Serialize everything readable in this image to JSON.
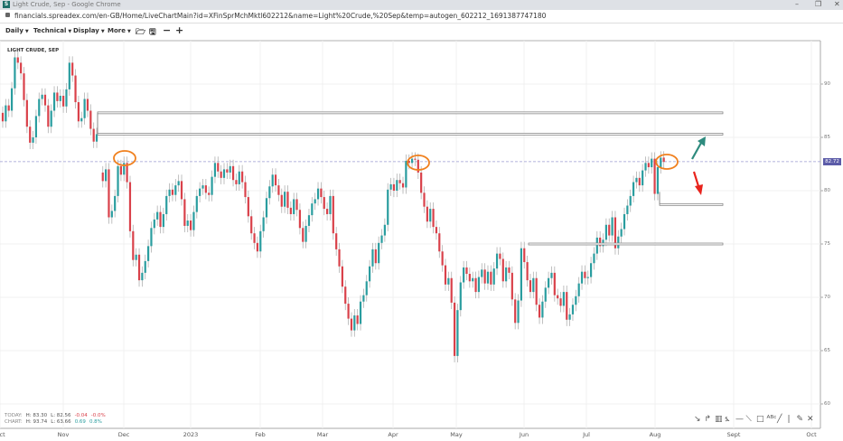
{
  "browser": {
    "title": "Light Crude, Sep - Google Chrome",
    "favicon_letter": "S",
    "url": "financials.spreadex.com/en-GB/Home/LiveChartMain?id=XFinSprMchMktl602212&name=Light%20Crude,%20Sep&temp=autogen_602212_1691387747180"
  },
  "toolbar": {
    "items": [
      {
        "label": "Daily",
        "dropdown": true
      },
      {
        "label": "Technical",
        "dropdown": true
      },
      {
        "label": "Display",
        "dropdown": true
      },
      {
        "label": "More",
        "dropdown": true
      }
    ],
    "icons": [
      "folder-open-icon",
      "save-icon",
      "zoom-out-icon",
      "zoom-in-icon"
    ]
  },
  "chart_title": "LIGHT CRUDE, SEP",
  "stats": {
    "today": {
      "label": "TODAY:",
      "high": "H: 83.30",
      "low": "L: 82.56",
      "change": "-0.04",
      "change_pct": "-0.0%"
    },
    "chart": {
      "label": "CHART:",
      "high": "H: 93.74",
      "low": "L: 63.66",
      "change": "0.69",
      "change_pct": "0.8%"
    }
  },
  "current_price": "82.72",
  "colors": {
    "up": "#2a9d9f",
    "down": "#d9414a",
    "wick": "#b0b0b0",
    "price_tag": "#5b5ba8",
    "highlight": "#f0801e",
    "arrow_up": "#2e8b7e",
    "arrow_down": "#e8231c"
  },
  "chart_data": {
    "type": "candlestick",
    "x_ticks": [
      "Oct",
      "Nov",
      "Dec",
      "2023",
      "Feb",
      "Mar",
      "Apr",
      "May",
      "Jun",
      "Jul",
      "Aug",
      "Sept",
      "Oct"
    ],
    "y_ticks": [
      60,
      65,
      70,
      75,
      80,
      85,
      90
    ],
    "ylim": [
      59.5,
      94.5
    ],
    "grid": true,
    "closes": [
      86.5,
      88,
      87.5,
      89.6,
      92.5,
      92,
      91,
      88.5,
      86,
      84.5,
      85,
      87,
      88.6,
      89,
      88,
      86,
      87.5,
      89.2,
      88.4,
      88.9,
      87.9,
      89.5,
      92,
      90.8,
      88.3,
      86.5,
      86.8,
      88.6,
      87.5,
      85.8,
      84.6,
      85.3,
      null,
      80.9,
      82,
      77.5,
      78.1,
      79.5,
      82.3,
      81.5,
      82.6,
      80.8,
      76.2,
      73.5,
      74,
      71.6,
      72.3,
      73.4,
      74.8,
      76.5,
      77.3,
      78,
      76.6,
      77.8,
      79.5,
      80.1,
      79.6,
      80.5,
      80.9,
      79.2,
      76.7,
      77.2,
      76.3,
      78,
      79.5,
      80.2,
      80.5,
      79.8,
      79.6,
      81.3,
      82.6,
      81.8,
      81.2,
      82,
      81.7,
      82.3,
      81,
      80.6,
      81.8,
      80.8,
      79.4,
      77.6,
      76,
      75.1,
      74.3,
      76.2,
      77.5,
      79.3,
      80.4,
      81.5,
      80.5,
      79.6,
      78.5,
      79.9,
      78.4,
      77.8,
      79.2,
      78.2,
      76.5,
      75.2,
      76.7,
      77.7,
      78.8,
      79.2,
      80.2,
      79.4,
      78.3,
      77.8,
      79.5,
      76,
      74.5,
      72.9,
      71,
      69.4,
      68,
      66.9,
      68.3,
      67.5,
      69.6,
      70.2,
      71.5,
      72.9,
      74.5,
      73.2,
      75.1,
      75.8,
      76.8,
      80.1,
      80.6,
      80,
      81,
      80.7,
      80.3,
      82.8,
      82.6,
      83,
      82.9,
      81.7,
      79.8,
      78.5,
      77.1,
      78.3,
      76.6,
      76,
      74.3,
      73,
      71.2,
      71.8,
      69.5,
      64.5,
      68.8,
      71.4,
      72.8,
      72.2,
      71.5,
      71.8,
      70.5,
      71.9,
      72.6,
      71.3,
      72.4,
      71.2,
      72.7,
      74.1,
      73.6,
      71.5,
      72.8,
      72.3,
      69.8,
      67.6,
      69.7,
      74.6,
      73.3,
      71.6,
      70.5,
      71.8,
      69.3,
      68.1,
      69.6,
      70.9,
      71.8,
      72.3,
      70.2,
      69.9,
      69.2,
      70.5,
      67.9,
      68.4,
      69.3,
      70.1,
      71.3,
      72.4,
      71.8,
      71.9,
      73.2,
      74.1,
      75.6,
      74.8,
      75.4,
      76.8,
      75.8,
      77.5,
      74.6,
      75.7,
      76.4,
      77.8,
      78.6,
      79.5,
      80.8,
      81.2,
      80.5,
      81.9,
      82.6,
      82.2,
      83,
      79.7,
      82.2,
      83.1,
      82.7
    ],
    "annotations": {
      "zone_levels": [
        87.3,
        85.3
      ],
      "support_levels": [
        78.7,
        75.0
      ],
      "current_price_line": 82.72
    }
  },
  "drawing_tools": [
    "arrow-tool-icon",
    "curve-tool-icon",
    "fibonacci-tool-icon",
    "fan-tool-icon",
    "horizontal-line-tool-icon",
    "trend-line-tool-icon",
    "rectangle-tool-icon",
    "text-tool-icon",
    "line-tool-icon",
    "separator",
    "pencil-tool-icon",
    "delete-drawings-icon"
  ]
}
